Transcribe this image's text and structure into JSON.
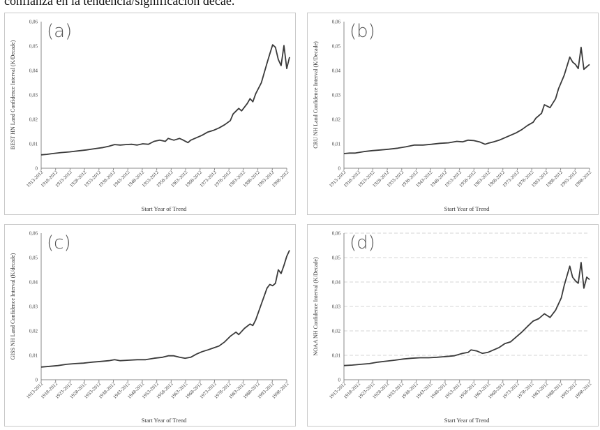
{
  "header_text": "confianza en la tendencia/significación decae.",
  "chart_data": [
    {
      "type": "line",
      "panel_label": "(a)",
      "ylabel": "BEST HN Land Confidence Interval (K/Decade)",
      "xlabel": "Start Year of Trend",
      "ylim": [
        0,
        0.06
      ],
      "yticks": [
        "0",
        "0,01",
        "0,02",
        "0,03",
        "0,04",
        "0,05",
        "0,06"
      ],
      "xticks": [
        "1913-2012",
        "1918-2012",
        "1923-2012",
        "1928-2012",
        "1933-2012",
        "1938-2012",
        "1943-2012",
        "1948-2012",
        "1953-2012",
        "1958-2012",
        "1963-2012",
        "1968-2012",
        "1973-2012",
        "1978-2012",
        "1983-2012",
        "1988-2012",
        "1993-2012",
        "1998-2012"
      ],
      "grid": false,
      "x": [
        1913,
        1915,
        1917,
        1920,
        1923,
        1926,
        1929,
        1932,
        1935,
        1937,
        1939,
        1941,
        1943,
        1945,
        1947,
        1949,
        1951,
        1953,
        1955,
        1957,
        1958,
        1960,
        1962,
        1963,
        1965,
        1966,
        1968,
        1970,
        1972,
        1974,
        1976,
        1978,
        1980,
        1981,
        1983,
        1984,
        1986,
        1987,
        1988,
        1989,
        1991,
        1993,
        1994,
        1995,
        1996,
        1997,
        1998,
        1999,
        2000,
        2001
      ],
      "values": [
        0.0055,
        0.0057,
        0.006,
        0.0064,
        0.0067,
        0.0071,
        0.0075,
        0.008,
        0.0085,
        0.009,
        0.0097,
        0.0095,
        0.0097,
        0.0098,
        0.0095,
        0.01,
        0.0098,
        0.011,
        0.0115,
        0.011,
        0.0122,
        0.0115,
        0.0122,
        0.0117,
        0.0105,
        0.0115,
        0.0125,
        0.0135,
        0.0148,
        0.0155,
        0.0165,
        0.0178,
        0.0195,
        0.0222,
        0.0245,
        0.0235,
        0.0265,
        0.0285,
        0.0272,
        0.0305,
        0.035,
        0.043,
        0.0468,
        0.0505,
        0.0495,
        0.0445,
        0.042,
        0.0502,
        0.0408,
        0.0455
      ]
    },
    {
      "type": "line",
      "panel_label": "(b)",
      "ylabel": "CRU NH Land Confidence Interval (K/Decade)",
      "xlabel": "Start Year of Trend",
      "ylim": [
        0,
        0.06
      ],
      "yticks": [
        "0",
        "0,01",
        "0,02",
        "0,03",
        "0,04",
        "0,05",
        "0,06"
      ],
      "xticks": [
        "1913-2012",
        "1918-2012",
        "1923-2012",
        "1928-2012",
        "1933-2012",
        "1938-2012",
        "1943-2012",
        "1948-2012",
        "1953-2012",
        "1958-2012",
        "1963-2012",
        "1968-2012",
        "1973-2012",
        "1978-2012",
        "1983-2012",
        "1988-2012",
        "1993-2012",
        "1998-2012"
      ],
      "grid": false,
      "x": [
        1913,
        1915,
        1917,
        1920,
        1923,
        1926,
        1929,
        1932,
        1935,
        1938,
        1941,
        1944,
        1947,
        1950,
        1953,
        1955,
        1957,
        1959,
        1961,
        1963,
        1964,
        1966,
        1968,
        1970,
        1972,
        1974,
        1976,
        1978,
        1980,
        1981,
        1983,
        1984,
        1986,
        1988,
        1989,
        1991,
        1993,
        1994,
        1995,
        1996,
        1997,
        1998,
        1999,
        2000
      ],
      "values": [
        0.006,
        0.0062,
        0.0062,
        0.0068,
        0.0072,
        0.0075,
        0.0078,
        0.0082,
        0.0088,
        0.0095,
        0.0095,
        0.0098,
        0.0102,
        0.0104,
        0.011,
        0.0108,
        0.0115,
        0.0113,
        0.0108,
        0.0098,
        0.0102,
        0.0108,
        0.0115,
        0.0125,
        0.0135,
        0.0145,
        0.0158,
        0.0175,
        0.0188,
        0.0205,
        0.0225,
        0.026,
        0.0248,
        0.0285,
        0.0325,
        0.038,
        0.0455,
        0.0435,
        0.0425,
        0.0408,
        0.0495,
        0.0405,
        0.0415,
        0.0425
      ]
    },
    {
      "type": "line",
      "panel_label": "(c)",
      "ylabel": "GISS NH Land Confidence Interval (K/decade)",
      "xlabel": "Start Year of Trend",
      "ylim": [
        0,
        0.06
      ],
      "yticks": [
        "0",
        "0,01",
        "0,02",
        "0,03",
        "0,04",
        "0,05",
        "0,06"
      ],
      "xticks": [
        "1913-2012",
        "1918-2012",
        "1923-2012",
        "1928-2012",
        "1933-2012",
        "1938-2012",
        "1943-2012",
        "1948-2012",
        "1953-2012",
        "1958-2012",
        "1963-2012",
        "1968-2012",
        "1973-2012",
        "1978-2012",
        "1983-2012",
        "1988-2012",
        "1993-2012",
        "1998-2012"
      ],
      "grid": false,
      "x": [
        1913,
        1916,
        1919,
        1922,
        1925,
        1928,
        1931,
        1934,
        1937,
        1939,
        1941,
        1944,
        1947,
        1950,
        1953,
        1956,
        1958,
        1960,
        1962,
        1964,
        1966,
        1968,
        1970,
        1972,
        1974,
        1976,
        1978,
        1980,
        1982,
        1983,
        1985,
        1987,
        1988,
        1989,
        1991,
        1993,
        1994,
        1995,
        1996,
        1997,
        1998,
        1999,
        2000,
        2001
      ],
      "values": [
        0.0052,
        0.0055,
        0.0058,
        0.0063,
        0.0066,
        0.0068,
        0.0072,
        0.0075,
        0.0078,
        0.0082,
        0.0078,
        0.008,
        0.0082,
        0.0082,
        0.0088,
        0.0092,
        0.0098,
        0.0098,
        0.0092,
        0.0088,
        0.0092,
        0.0105,
        0.0115,
        0.0122,
        0.013,
        0.0138,
        0.0155,
        0.0178,
        0.0195,
        0.0185,
        0.021,
        0.0228,
        0.0222,
        0.0245,
        0.031,
        0.0375,
        0.039,
        0.0385,
        0.0395,
        0.045,
        0.0435,
        0.0468,
        0.0505,
        0.053
      ]
    },
    {
      "type": "line",
      "panel_label": "(d)",
      "ylabel": "NOAA NH Confidence Interval (K/Decade)",
      "xlabel": "Start Year of Trend",
      "ylim": [
        0,
        0.06
      ],
      "yticks": [
        "0",
        "0,01",
        "0,02",
        "0,03",
        "0,04",
        "0,05",
        "0,06"
      ],
      "xticks": [
        "1913-2012",
        "1918-2012",
        "1923-2012",
        "1928-2012",
        "1933-2012",
        "1938-2012",
        "1943-2012",
        "1948-2012",
        "1953-2012",
        "1958-2012",
        "1963-2012",
        "1968-2012",
        "1973-2012",
        "1978-2012",
        "1983-2012",
        "1988-2012",
        "1993-2012",
        "1998-2012"
      ],
      "grid": true,
      "x": [
        1913,
        1916,
        1919,
        1922,
        1925,
        1928,
        1931,
        1934,
        1937,
        1940,
        1943,
        1946,
        1949,
        1952,
        1955,
        1957,
        1958,
        1960,
        1962,
        1964,
        1966,
        1968,
        1970,
        1972,
        1974,
        1976,
        1978,
        1980,
        1982,
        1984,
        1986,
        1988,
        1990,
        1991,
        1993,
        1994,
        1995,
        1996,
        1997,
        1998,
        1999,
        2000
      ],
      "values": [
        0.0058,
        0.006,
        0.0063,
        0.0066,
        0.0072,
        0.0076,
        0.008,
        0.0085,
        0.0088,
        0.009,
        0.009,
        0.0092,
        0.0095,
        0.0098,
        0.0108,
        0.0112,
        0.0122,
        0.0118,
        0.0108,
        0.0112,
        0.0122,
        0.0132,
        0.0148,
        0.0155,
        0.0175,
        0.0195,
        0.0218,
        0.024,
        0.025,
        0.027,
        0.0255,
        0.0285,
        0.0335,
        0.0385,
        0.0465,
        0.042,
        0.0405,
        0.0395,
        0.048,
        0.0375,
        0.042,
        0.041
      ]
    }
  ]
}
